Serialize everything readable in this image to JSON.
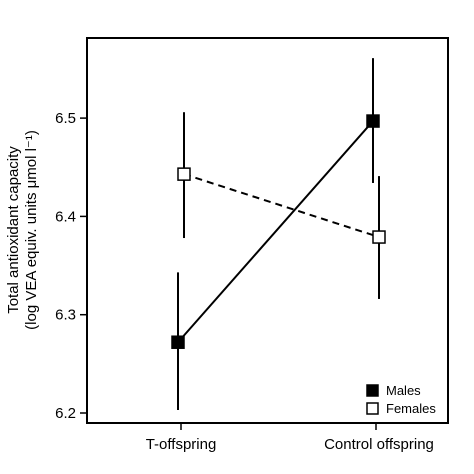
{
  "chart_data": {
    "type": "line",
    "categories": [
      "T-offspring",
      "Control offspring"
    ],
    "ylabel_line1": "Total antioxidant capacity",
    "ylabel_line2": "(log VEA equiv. units μmol l⁻¹)",
    "ylim": [
      6.2,
      6.55
    ],
    "yticks": [
      "6.2",
      "6.3",
      "6.4",
      "6.5"
    ],
    "grid": false,
    "legend_position": "bottom-right",
    "series": [
      {
        "name": "Males",
        "marker": "filled-square",
        "line_style": "solid",
        "color": "#000000",
        "points": [
          {
            "category": "T-offspring",
            "y": 6.272,
            "err_low": 6.203,
            "err_high": 6.343
          },
          {
            "category": "Control offspring",
            "y": 6.497,
            "err_low": 6.434,
            "err_high": 6.561
          }
        ]
      },
      {
        "name": "Females",
        "marker": "open-square",
        "line_style": "dashed",
        "color": "#000000",
        "points": [
          {
            "category": "T-offspring",
            "y": 6.443,
            "err_low": 6.378,
            "err_high": 6.506
          },
          {
            "category": "Control offspring",
            "y": 6.379,
            "err_low": 6.316,
            "err_high": 6.441
          }
        ]
      }
    ]
  }
}
